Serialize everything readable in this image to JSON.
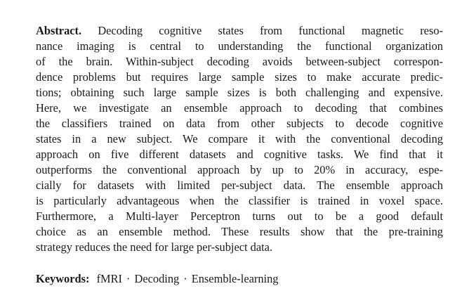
{
  "abstract": {
    "label": "Abstract.",
    "lines": [
      " Decoding cognitive states from functional magnetic reso-",
      "nance imaging is central to understanding the functional organization",
      "of the brain. Within-subject decoding avoids between-subject correspon-",
      "dence problems but requires large sample sizes to make accurate predic-",
      "tions; obtaining such large sample sizes is both challenging and expensive.",
      "Here, we investigate an ensemble approach to decoding that combines",
      "the classifiers trained on data from other subjects to decode cognitive",
      "states in a new subject. We compare it with the conventional decoding",
      "approach on five different datasets and cognitive tasks. We find that it",
      "outperforms the conventional approach by up to 20% in accuracy, espe-",
      "cially for datasets with limited per-subject data. The ensemble approach",
      "is particularly advantageous when the classifier is trained in voxel space.",
      "Furthermore, a Multi-layer Perceptron turns out to be a good default",
      "choice as an ensemble method. These results show that the pre-training",
      "strategy reduces the need for large per-subject data."
    ]
  },
  "keywords": {
    "label": "Keywords:",
    "items": [
      "fMRI",
      "Decoding",
      "Ensemble-learning"
    ],
    "separator": "·"
  }
}
